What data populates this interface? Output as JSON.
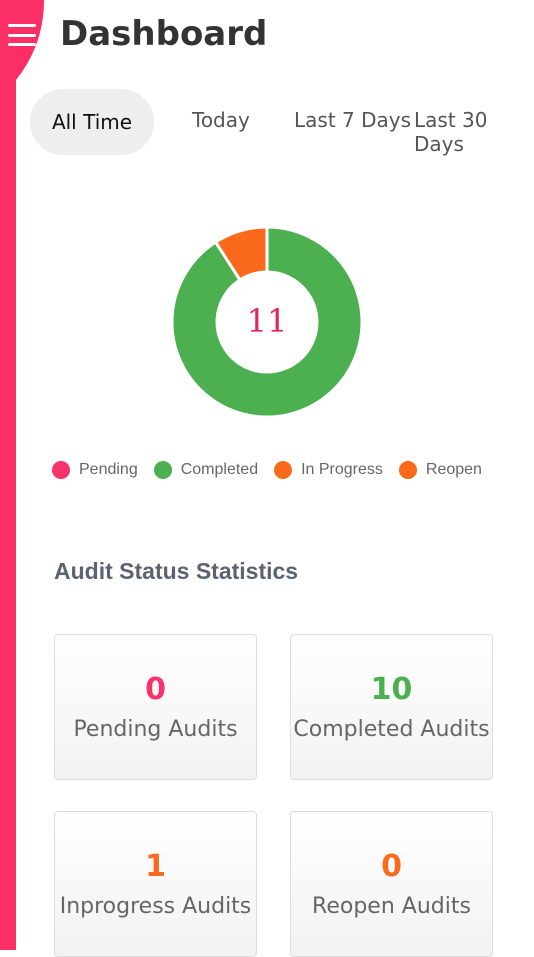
{
  "header": {
    "title": "Dashboard",
    "menu_icon": "hamburger-icon"
  },
  "tabs": [
    {
      "label": "All Time",
      "active": true
    },
    {
      "label": "Today",
      "active": false
    },
    {
      "label": "Last 7 Days",
      "active": false
    },
    {
      "label": "Last 30 Days",
      "active": false
    }
  ],
  "chart_data": {
    "type": "pie",
    "variant": "donut",
    "total": "11",
    "categories": [
      "Pending",
      "Completed",
      "In Progress",
      "Reopen"
    ],
    "values": [
      0,
      10,
      1,
      0
    ],
    "colors": [
      "#f6336a",
      "#4caf50",
      "#fb6a1c",
      "#fb6a1c"
    ],
    "legend": "bottom"
  },
  "legend": [
    {
      "label": "Pending",
      "color": "#f6336a"
    },
    {
      "label": "Completed",
      "color": "#4caf50"
    },
    {
      "label": "In Progress",
      "color": "#fb6a1c"
    },
    {
      "label": "Reopen",
      "color": "#fb6a1c"
    }
  ],
  "stats": {
    "title": "Audit Status Statistics",
    "cards": [
      {
        "count": "0",
        "label": "Pending Audits",
        "color": "#f6336a"
      },
      {
        "count": "10",
        "label": "Completed Audits",
        "color": "#4caf50"
      },
      {
        "count": "1",
        "label": "Inprogress Audits",
        "color": "#fb6a1c"
      },
      {
        "count": "0",
        "label": "Reopen Audits",
        "color": "#fb6a1c"
      }
    ]
  },
  "colors": {
    "accent": "#fb2f66"
  }
}
